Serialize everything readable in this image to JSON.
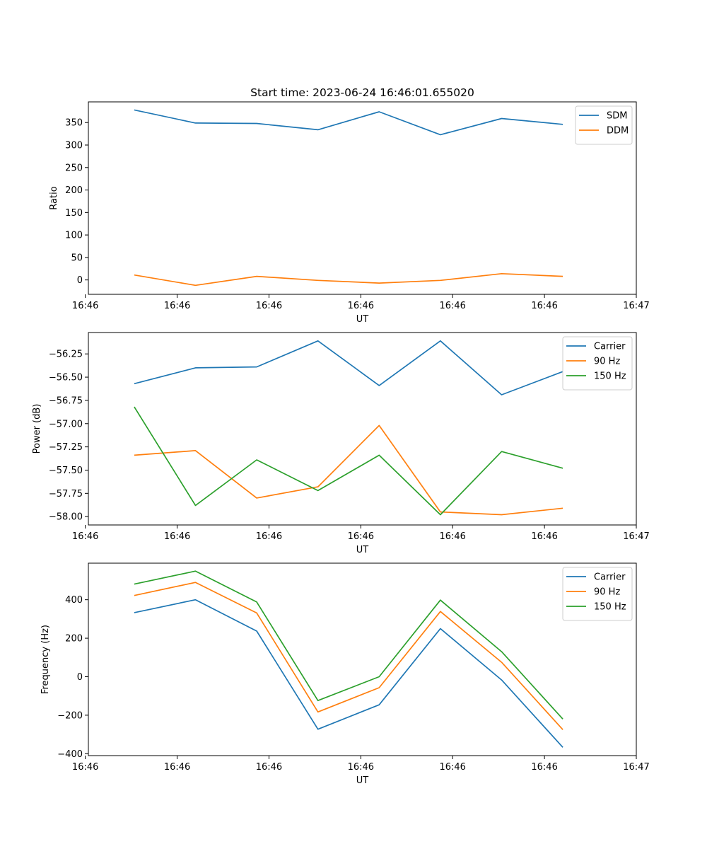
{
  "figure": {
    "title": "Start time: 2023-06-24 16:46:01.655020"
  },
  "chart_data": [
    {
      "type": "line",
      "title": "Start time: 2023-06-24 16:46:01.655020",
      "xlabel": "UT",
      "ylabel": "Ratio",
      "x": [
        1.0,
        2.0,
        3.0,
        4.0,
        5.0,
        6.0,
        7.0,
        8.0
      ],
      "xlim": [
        0.25,
        9.2
      ],
      "xticks": [
        0.2,
        1.7,
        3.2,
        4.7,
        6.2,
        7.7,
        9.2
      ],
      "xticklabels": [
        "16:46",
        "16:46",
        "16:46",
        "16:46",
        "16:46",
        "16:46",
        "16:47"
      ],
      "ylim": [
        -32,
        396
      ],
      "yticks": [
        0,
        50,
        100,
        150,
        200,
        250,
        300,
        350
      ],
      "yticklabels": [
        "0",
        "50",
        "100",
        "150",
        "200",
        "250",
        "300",
        "350"
      ],
      "legend": "top-right",
      "grid": false,
      "series": [
        {
          "name": "SDM",
          "color": "#1f77b4",
          "values": [
            378,
            349,
            348,
            334,
            374,
            323,
            359,
            346
          ]
        },
        {
          "name": "DDM",
          "color": "#ff7f0e",
          "values": [
            11,
            -12,
            8,
            -1,
            -7,
            -1,
            14,
            8
          ]
        }
      ]
    },
    {
      "type": "line",
      "xlabel": "UT",
      "ylabel": "Power (dB)",
      "x": [
        1.0,
        2.0,
        3.0,
        4.0,
        5.0,
        6.0,
        7.0,
        8.0
      ],
      "xlim": [
        0.25,
        9.2
      ],
      "xticks": [
        0.2,
        1.7,
        3.2,
        4.7,
        6.2,
        7.7,
        9.2
      ],
      "xticklabels": [
        "16:46",
        "16:46",
        "16:46",
        "16:46",
        "16:46",
        "16:46",
        "16:47"
      ],
      "ylim": [
        -58.09,
        -56.02
      ],
      "yticks": [
        -58.0,
        -57.75,
        -57.5,
        -57.25,
        -57.0,
        -56.75,
        -56.5,
        -56.25
      ],
      "yticklabels": [
        "−58.00",
        "−57.75",
        "−57.50",
        "−57.25",
        "−57.00",
        "−56.75",
        "−56.50",
        "−56.25"
      ],
      "legend": "top-right",
      "grid": false,
      "series": [
        {
          "name": "Carrier",
          "color": "#1f77b4",
          "values": [
            -56.57,
            -56.4,
            -56.39,
            -56.11,
            -56.59,
            -56.11,
            -56.69,
            -56.44
          ]
        },
        {
          "name": "90 Hz",
          "color": "#ff7f0e",
          "values": [
            -57.34,
            -57.29,
            -57.8,
            -57.68,
            -57.02,
            -57.95,
            -57.98,
            -57.91
          ]
        },
        {
          "name": "150 Hz",
          "color": "#2ca02c",
          "values": [
            -56.82,
            -57.88,
            -57.39,
            -57.72,
            -57.34,
            -57.98,
            -57.3,
            -57.48
          ]
        }
      ]
    },
    {
      "type": "line",
      "xlabel": "UT",
      "ylabel": "Frequency (Hz)",
      "x": [
        1.0,
        2.0,
        3.0,
        4.0,
        5.0,
        6.0,
        7.0,
        8.0
      ],
      "xlim": [
        0.25,
        9.2
      ],
      "xticks": [
        0.2,
        1.7,
        3.2,
        4.7,
        6.2,
        7.7,
        9.2
      ],
      "xticklabels": [
        "16:46",
        "16:46",
        "16:46",
        "16:46",
        "16:46",
        "16:46",
        "16:47"
      ],
      "ylim": [
        -410,
        590
      ],
      "yticks": [
        -400,
        -200,
        0,
        200,
        400
      ],
      "yticklabels": [
        "−400",
        "−200",
        "0",
        "200",
        "400"
      ],
      "legend": "top-right",
      "grid": false,
      "series": [
        {
          "name": "Carrier",
          "color": "#1f77b4",
          "values": [
            333,
            400,
            237,
            -273,
            -146,
            250,
            -17,
            -367
          ]
        },
        {
          "name": "90 Hz",
          "color": "#ff7f0e",
          "values": [
            422,
            490,
            331,
            -183,
            -57,
            339,
            75,
            -275
          ]
        },
        {
          "name": "150 Hz",
          "color": "#2ca02c",
          "values": [
            481,
            549,
            388,
            -124,
            0,
            398,
            130,
            -220
          ]
        }
      ]
    }
  ]
}
